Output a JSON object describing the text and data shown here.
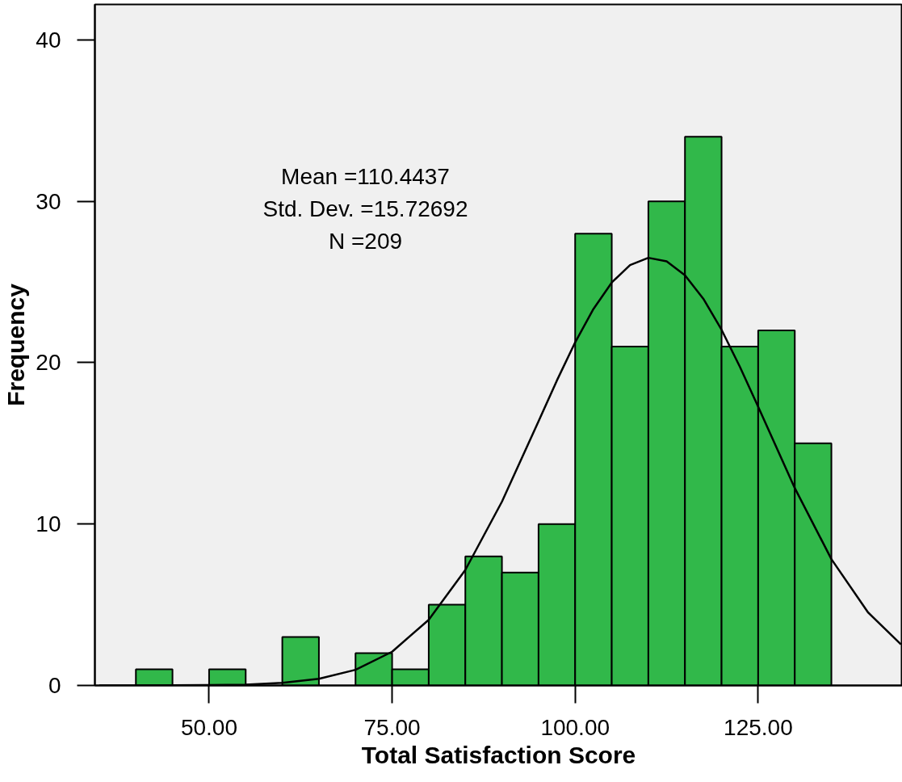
{
  "chart_data": {
    "type": "histogram",
    "xlabel": "Total Satisfaction Score",
    "ylabel": "Frequency",
    "bins": [
      40,
      45,
      50,
      55,
      60,
      65,
      70,
      75,
      80,
      85,
      90,
      95,
      100,
      105,
      110,
      115,
      120,
      125,
      130,
      135
    ],
    "values": [
      1,
      0,
      1,
      0,
      3,
      0,
      2,
      1,
      5,
      8,
      7,
      10,
      28,
      21,
      30,
      34,
      21,
      22,
      15
    ],
    "color": "#31b84a",
    "series": [
      {
        "type": "line",
        "color": "#000000",
        "x": [
          35,
          40,
          45,
          50,
          55,
          60,
          65,
          70,
          75,
          80,
          85,
          90,
          95,
          97.5,
          100,
          102.5,
          105,
          107.5,
          110,
          112.5,
          115,
          117.5,
          120,
          122.5,
          125,
          130,
          135,
          140,
          144.5
        ],
        "values": [
          0,
          0,
          0.01,
          0.02,
          0.05,
          0.16,
          0.41,
          0.97,
          2.09,
          4.07,
          7.16,
          11.39,
          16.37,
          18.89,
          21.26,
          23.33,
          24.97,
          26.05,
          26.5,
          26.28,
          25.42,
          23.97,
          22.04,
          19.75,
          17.27,
          12.23,
          7.83,
          4.53,
          2.55
        ]
      }
    ],
    "xlim": [
      34.4,
      144.7
    ],
    "ylim": [
      0,
      42.2
    ],
    "xticks": [
      {
        "value": 50,
        "label": "50.00"
      },
      {
        "value": 75,
        "label": "75.00"
      },
      {
        "value": 100,
        "label": "100.00"
      },
      {
        "value": 125,
        "label": "125.00"
      }
    ],
    "yticks": [
      0,
      10,
      20,
      30,
      40
    ],
    "grid": false,
    "annotations": [
      {
        "text": "Mean =110.4437"
      },
      {
        "text": "Std. Dev. =15.72692"
      },
      {
        "text": "N =209"
      }
    ]
  }
}
